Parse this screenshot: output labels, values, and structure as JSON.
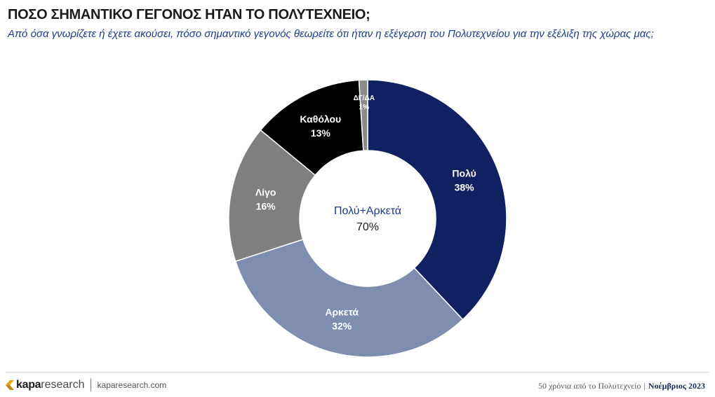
{
  "header": {
    "title": "ΠΟΣΟ ΣΗΜΑΝΤΙΚΟ ΓΕΓΟΝΟΣ ΗΤΑΝ ΤΟ ΠΟΛΥΤΕΧΝΕΙΟ;",
    "subtitle": "Από όσα γνωρίζετε ή έχετε ακούσει, πόσο σημαντικό γεγονός θεωρείτε ότι ήταν η εξέγερση του Πολυτεχνείου για την εξέλιξη της χώρας μας;"
  },
  "chart_data": {
    "type": "pie",
    "donut": true,
    "title": "ΠΟΣΟ ΣΗΜΑΝΤΙΚΟ ΓΕΓΟΝΟΣ ΗΤΑΝ ΤΟ ΠΟΛΥΤΕΧΝΕΙΟ;",
    "categories": [
      "Πολύ",
      "Αρκετά",
      "Λίγο",
      "Καθόλου",
      "ΔΓ/ΔΑ"
    ],
    "values": [
      38,
      32,
      16,
      13,
      1
    ],
    "value_labels": [
      "38%",
      "32%",
      "16%",
      "13%",
      "1%"
    ],
    "colors": [
      "#0f2160",
      "#7f8db0",
      "#7f7f7f",
      "#000000",
      "#8c8c8c"
    ],
    "center_label": "Πολύ+Αρκετά",
    "center_value": "70%",
    "legend": "none"
  },
  "footer": {
    "brand_bold": "kapa",
    "brand_light": "research",
    "website": "kaparesearch.com",
    "report": "50 χρόνια από το Πολυτεχνείο",
    "separator": "|",
    "date": "Νοέμβριος 2023"
  }
}
